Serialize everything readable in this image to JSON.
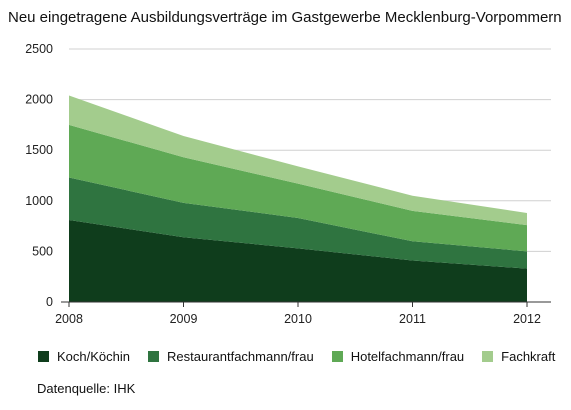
{
  "chart_data": {
    "type": "area",
    "stacked": true,
    "title": "Neu eingetragene Ausbildungsverträge im Gastgewerbe Mecklenburg-Vorpommern",
    "x": [
      "2008",
      "2009",
      "2010",
      "2011",
      "2012"
    ],
    "ylim": [
      0,
      2500
    ],
    "yticks": [
      0,
      500,
      1000,
      1500,
      2000,
      2500
    ],
    "grid": true,
    "legend_position": "bottom",
    "series": [
      {
        "name": "Koch/Köchin",
        "color": "#0f3d1c",
        "values": [
          810,
          640,
          530,
          410,
          330
        ]
      },
      {
        "name": "Restaurantfachmann/frau",
        "color": "#2f7440",
        "values": [
          420,
          340,
          300,
          190,
          170
        ]
      },
      {
        "name": "Hotelfachmann/frau",
        "color": "#5fa955",
        "values": [
          520,
          450,
          340,
          300,
          260
        ]
      },
      {
        "name": "Fachkraft",
        "color": "#a3cc8d",
        "values": [
          290,
          210,
          170,
          150,
          120
        ]
      }
    ],
    "source": "Datenquelle: IHK"
  }
}
